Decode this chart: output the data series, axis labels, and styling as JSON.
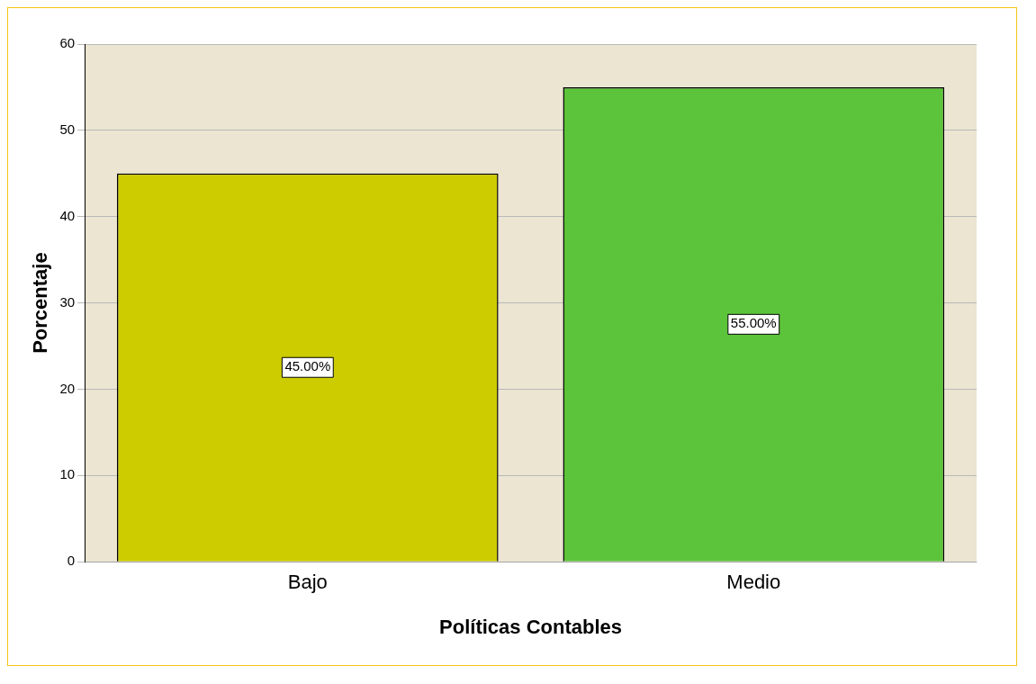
{
  "chart_data": {
    "type": "bar",
    "categories": [
      "Bajo",
      "Medio"
    ],
    "values": [
      45,
      55
    ],
    "colors": [
      "#cccc00",
      "#5cc43a"
    ],
    "value_labels": [
      "45.00%",
      "55.00%"
    ],
    "xlabel": "Políticas Contables",
    "ylabel": "Porcentaje",
    "ylim": [
      0,
      60
    ],
    "yticks": [
      0,
      10,
      20,
      30,
      40,
      50,
      60
    ],
    "grid": "y",
    "legend": false
  }
}
